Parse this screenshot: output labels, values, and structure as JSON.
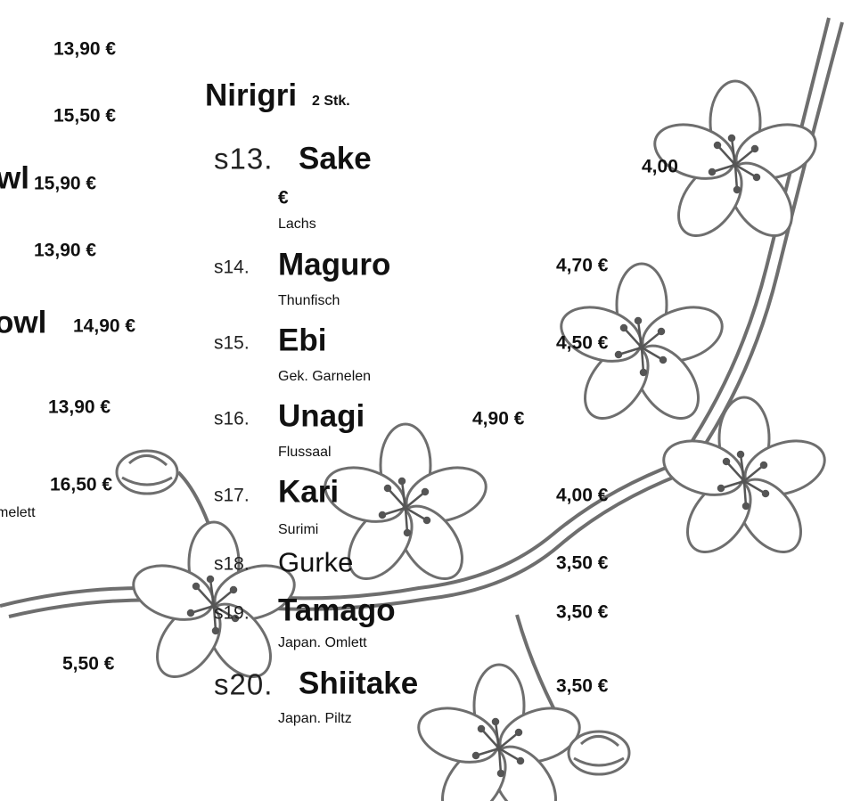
{
  "left_column": {
    "items": [
      {
        "price": "13,90 €"
      },
      {
        "price": "15,50 €"
      },
      {
        "name": "wl",
        "price": "15,90 €"
      },
      {
        "price": "13,90 €"
      },
      {
        "name": "owl",
        "price": "14,90 €"
      },
      {
        "price": "13,90 €"
      },
      {
        "price": "16,50 €",
        "description": "melett"
      },
      {
        "price": "5,50 €"
      }
    ]
  },
  "section": {
    "title": "Nirigri",
    "subtitle": "2 Stk.",
    "items": [
      {
        "number": "s13.",
        "name": "Sake",
        "price": "4,00",
        "price_unit": "€",
        "description": "Lachs"
      },
      {
        "number": "s14.",
        "name": "Maguro",
        "price": "4,70 €",
        "description": "Thunfisch"
      },
      {
        "number": "s15.",
        "name": "Ebi",
        "price": "4,50 €",
        "description": "Gek. Garnelen"
      },
      {
        "number": "s16.",
        "name": "Unagi",
        "price": "4,90 €",
        "description": "Flussaal"
      },
      {
        "number": "s17.",
        "name": "Kari",
        "price": "4,00 €",
        "description": "Surimi"
      },
      {
        "number": "s18.",
        "name": "Gurke",
        "price": "3,50 €"
      },
      {
        "number": "s19.",
        "name": "Tamago",
        "price": "3,50 €",
        "description": "Japan. Omlett"
      },
      {
        "number": "s20.",
        "name": "Shiitake",
        "price": "3,50 €",
        "description": "Japan. Piltz"
      }
    ]
  }
}
